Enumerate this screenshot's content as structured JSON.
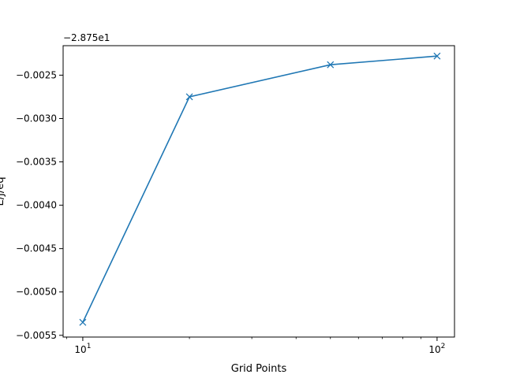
{
  "chart_data": {
    "type": "line",
    "title": "",
    "xlabel": "Grid Points",
    "ylabel": "E/J/eq",
    "x_scale": "log",
    "xlim": [
      8.8,
      112
    ],
    "ylim": [
      -0.00552,
      -0.00216
    ],
    "y_offset_text": "−2.875e1",
    "x_ticks": [
      {
        "value": 10,
        "base": "10",
        "exp": "1"
      },
      {
        "value": 100,
        "base": "10",
        "exp": "2"
      }
    ],
    "y_ticks": [
      {
        "value": -0.0055,
        "label": "−0.0055"
      },
      {
        "value": -0.005,
        "label": "−0.0050"
      },
      {
        "value": -0.0045,
        "label": "−0.0045"
      },
      {
        "value": -0.004,
        "label": "−0.0040"
      },
      {
        "value": -0.0035,
        "label": "−0.0035"
      },
      {
        "value": -0.003,
        "label": "−0.0030"
      },
      {
        "value": -0.0025,
        "label": "−0.0025"
      }
    ],
    "series": [
      {
        "x": [
          10,
          20,
          50,
          100
        ],
        "y": [
          -0.00535,
          -0.00275,
          -0.00238,
          -0.00228
        ],
        "marker": "x",
        "color": "#1f77b4"
      }
    ],
    "grid": false,
    "legend": "none"
  }
}
